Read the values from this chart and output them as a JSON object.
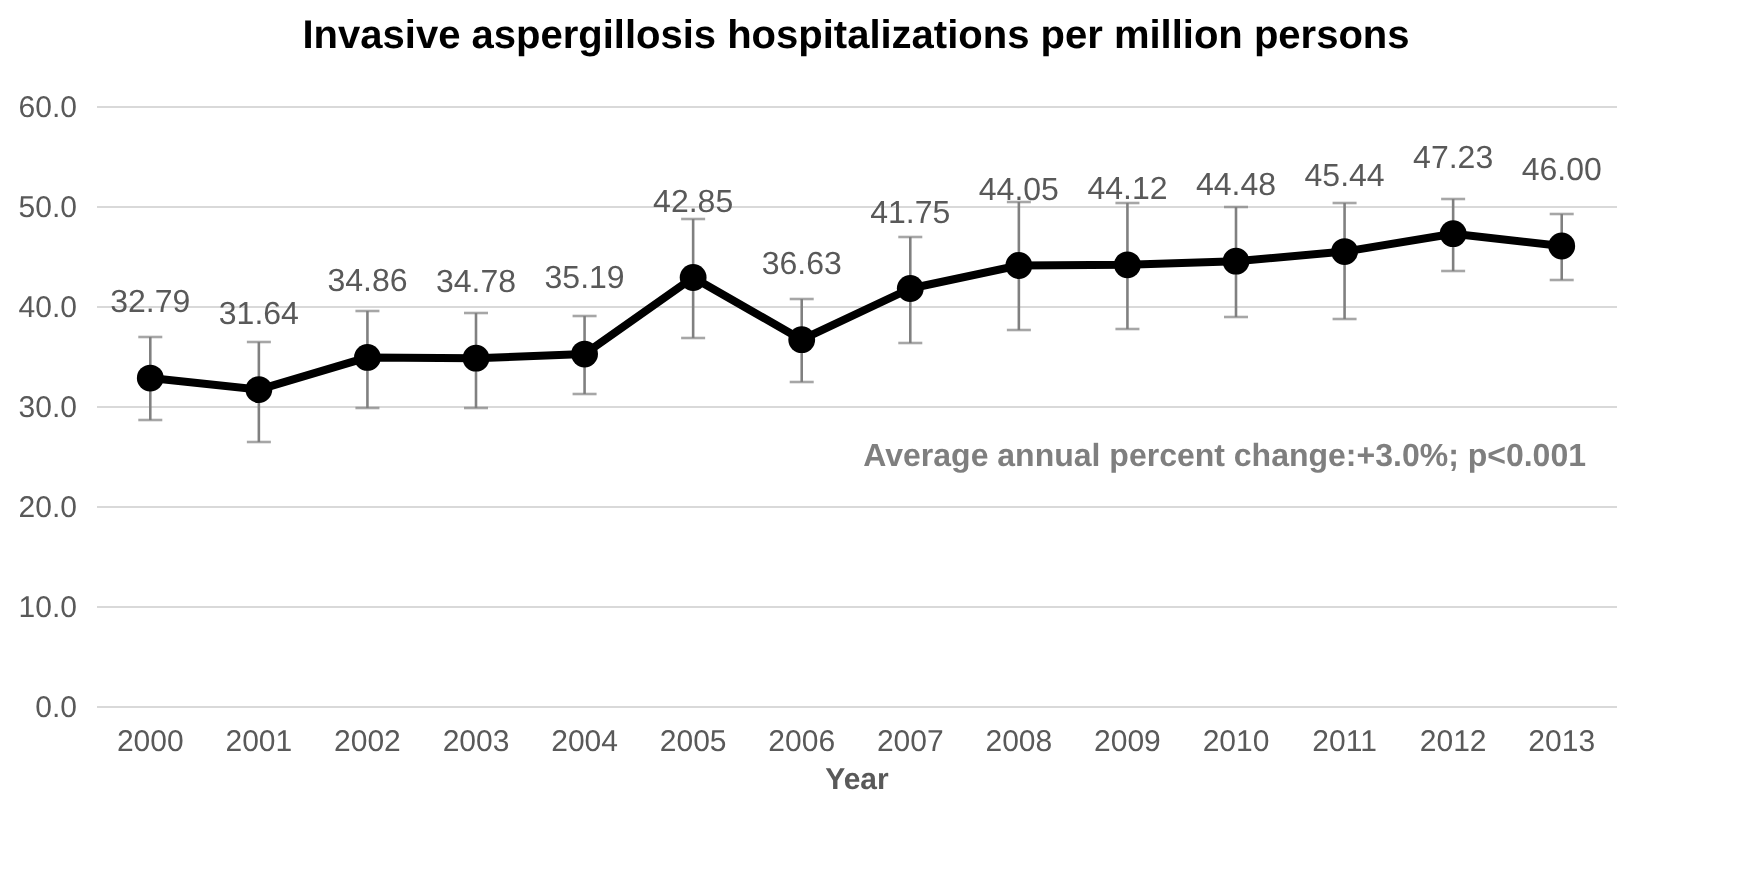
{
  "chart_data": {
    "type": "line",
    "title": "Invasive aspergillosis hospitalizations per million persons",
    "xlabel": "Year",
    "categories": [
      "2000",
      "2001",
      "2002",
      "2003",
      "2004",
      "2005",
      "2006",
      "2007",
      "2008",
      "2009",
      "2010",
      "2011",
      "2012",
      "2013"
    ],
    "series": [
      {
        "color": "#000000",
        "values": [
          32.79,
          31.64,
          34.86,
          34.78,
          35.19,
          42.85,
          36.63,
          41.75,
          44.05,
          44.12,
          44.48,
          45.44,
          47.23,
          46.0
        ],
        "errors": [
          [
            28.6,
            36.9
          ],
          [
            26.4,
            36.4
          ],
          [
            29.8,
            39.5
          ],
          [
            29.8,
            39.3
          ],
          [
            31.2,
            39.0
          ],
          [
            36.8,
            48.7
          ],
          [
            32.4,
            40.7
          ],
          [
            36.3,
            46.9
          ],
          [
            37.6,
            50.4
          ],
          [
            37.7,
            50.3
          ],
          [
            38.9,
            49.9
          ],
          [
            38.7,
            50.3
          ],
          [
            43.5,
            50.7
          ],
          [
            42.6,
            49.2
          ]
        ]
      }
    ],
    "value_labels": [
      "32.79",
      "31.64",
      "34.86",
      "34.78",
      "35.19",
      "42.85",
      "36.63",
      "41.75",
      "44.05",
      "44.12",
      "44.48",
      "45.44",
      "47.23",
      "46.00"
    ],
    "ylim": [
      0,
      60
    ],
    "yticks": [
      {
        "value": 0,
        "label": "0.0"
      },
      {
        "value": 10,
        "label": "10.0"
      },
      {
        "value": 20,
        "label": "20.0"
      },
      {
        "value": 30,
        "label": "30.0"
      },
      {
        "value": 40,
        "label": "40.0"
      },
      {
        "value": 50,
        "label": "50.0"
      },
      {
        "value": 60,
        "label": "60.0"
      }
    ],
    "grid": "y",
    "marker": "circle",
    "line_style": "solid",
    "legend": false,
    "annotations": [
      "Average annual percent change:+3.0%; p<0.001"
    ]
  }
}
